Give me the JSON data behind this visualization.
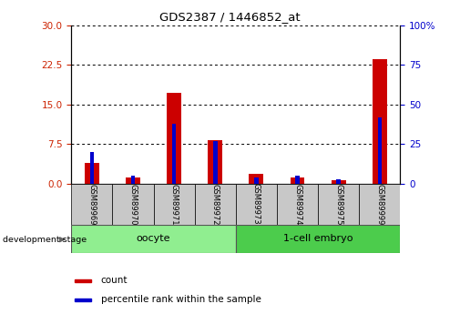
{
  "title": "GDS2387 / 1446852_at",
  "samples": [
    "GSM89969",
    "GSM89970",
    "GSM89971",
    "GSM89972",
    "GSM89973",
    "GSM89974",
    "GSM89975",
    "GSM89999"
  ],
  "count_values": [
    4.0,
    1.2,
    17.2,
    8.2,
    1.8,
    1.2,
    0.7,
    23.5
  ],
  "percentile_values": [
    20.0,
    5.0,
    38.0,
    27.0,
    4.0,
    5.0,
    2.5,
    42.0
  ],
  "left_ylim": [
    0,
    30
  ],
  "right_ylim": [
    0,
    100
  ],
  "left_yticks": [
    0,
    7.5,
    15,
    22.5,
    30
  ],
  "right_yticks": [
    0,
    25,
    50,
    75,
    100
  ],
  "count_color": "#cc0000",
  "percentile_color": "#0000cc",
  "sample_box_color": "#c8c8c8",
  "oocyte_color": "#90ee90",
  "embryo_color": "#4ccc4c",
  "red_tick_color": "#cc2200",
  "blue_tick_color": "#0000cc"
}
